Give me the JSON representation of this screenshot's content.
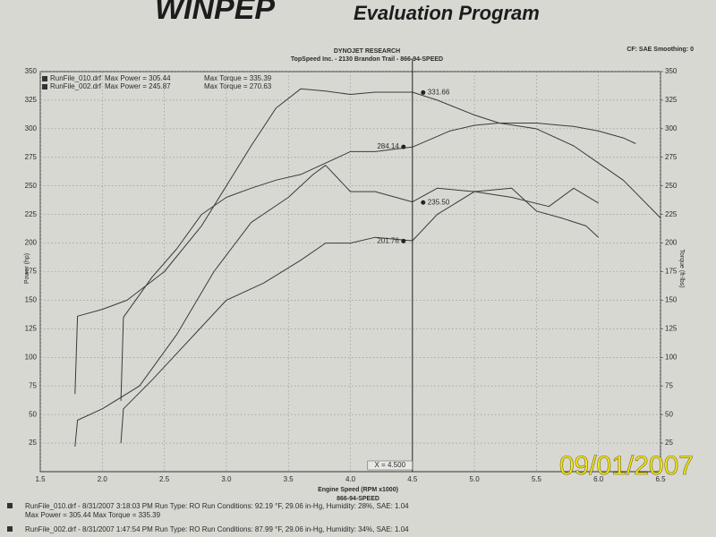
{
  "header": {
    "logo": "WINPEP",
    "program": "Evaluation Program",
    "company": "DYNOJET RESEARCH",
    "shop": "TopSpeed Inc. - 2130 Brandon Trail - 866-94-SPEED",
    "settings": "CF: SAE  Smoothing: 0"
  },
  "chart_data": {
    "type": "line",
    "xlabel": "Engine Speed (RPM x1000)",
    "xsublabel": "866-94-SPEED",
    "ylabel": "Power (hp)",
    "y2label": "Torque (ft-lbs)",
    "xlim": [
      1.5,
      6.5
    ],
    "xticks": [
      1.5,
      {
        "value": 2,
        "label": "2.0"
      },
      2.5,
      {
        "value": 3,
        "label": "3.0"
      },
      3.5,
      {
        "value": 4,
        "label": "4.0"
      },
      4.5,
      {
        "value": 5,
        "label": "5.0"
      },
      5.5,
      {
        "value": 6,
        "label": "6.0"
      },
      6.5
    ],
    "ylim": [
      0,
      350
    ],
    "yticks": [
      25,
      50,
      75,
      100,
      125,
      150,
      175,
      200,
      225,
      250,
      275,
      300,
      325,
      350
    ],
    "y2lim": [
      0,
      350
    ],
    "y2ticks": [
      25,
      50,
      75,
      100,
      125,
      150,
      175,
      200,
      225,
      250,
      275,
      300,
      325,
      350
    ],
    "grid": true,
    "legend": [
      {
        "file": "RunFile_010.drf",
        "power": "Max Power = 305.44",
        "torque": "Max Torque = 335.39"
      },
      {
        "file": "RunFile_002.drf",
        "power": "Max Power = 245.87",
        "torque": "Max Torque = 270.63"
      }
    ],
    "series": [
      {
        "color": "#3a3a3a",
        "axis": "y2",
        "x": [
          1.78,
          1.8,
          2.0,
          2.2,
          2.5,
          2.8,
          3.0,
          3.2,
          3.4,
          3.6,
          3.8,
          4.0,
          4.2,
          4.5,
          4.7,
          5.0,
          5.2,
          5.5,
          5.8,
          6.0,
          6.2,
          6.3
        ],
        "values": [
          68,
          136,
          142,
          150,
          175,
          215,
          250,
          285,
          318,
          335,
          333,
          330,
          332,
          332,
          325,
          312,
          305,
          305,
          302,
          298,
          292,
          287
        ]
      },
      {
        "color": "#3a3a3a",
        "x": [
          2.15,
          2.17,
          2.4,
          2.6,
          2.8,
          3.0,
          3.2,
          3.4,
          3.6,
          3.8,
          4.0,
          4.2,
          4.5,
          4.8,
          5.0,
          5.2,
          5.5,
          5.8,
          6.0,
          6.2,
          6.5
        ],
        "values": [
          62,
          135,
          170,
          195,
          225,
          240,
          248,
          255,
          260,
          270,
          280,
          280,
          284,
          298,
          303,
          305,
          300,
          285,
          270,
          255,
          222
        ]
      },
      {
        "color": "#3a3a3a",
        "axis": "y2",
        "x": [
          1.78,
          1.8,
          2.0,
          2.3,
          2.6,
          2.9,
          3.2,
          3.5,
          3.7,
          3.8,
          4.0,
          4.2,
          4.5,
          4.7,
          5.0,
          5.3,
          5.6,
          5.8,
          6.0
        ],
        "values": [
          22,
          45,
          55,
          75,
          120,
          175,
          218,
          240,
          260,
          268,
          245,
          245,
          236,
          248,
          245,
          240,
          232,
          248,
          235
        ]
      },
      {
        "color": "#3a3a3a",
        "x": [
          2.15,
          2.17,
          2.4,
          2.7,
          3.0,
          3.3,
          3.6,
          3.8,
          4.0,
          4.2,
          4.4,
          4.5,
          4.7,
          5.0,
          5.3,
          5.5,
          5.7,
          5.9,
          6.0
        ],
        "values": [
          25,
          55,
          80,
          115,
          150,
          165,
          185,
          200,
          200,
          205,
          203,
          202,
          225,
          245,
          248,
          228,
          222,
          215,
          205
        ]
      }
    ],
    "cursor": {
      "x": 4.5,
      "label": "X = 4.500",
      "values": [
        331.66,
        284.14,
        235.5,
        201.76
      ],
      "value_labels": [
        "331.66",
        "284.14",
        "235.50",
        "201.76"
      ]
    }
  },
  "footer": {
    "run1": "RunFile_010.drf - 8/31/2007 3:18:03 PM  Run Type: RO  Run Conditions: 92.19 °F, 29.06 in-Hg,  Humidity: 28%,  SAE: 1.04",
    "run1_max": "Max Power = 305.44  Max Torque = 335.39",
    "run2": "RunFile_002.drf - 8/31/2007 1:47:54 PM  Run Type: RO  Run Conditions: 87.99 °F, 29.06 in-Hg,  Humidity: 34%,  SAE: 1.04"
  },
  "date_stamp": "09/01/2007"
}
